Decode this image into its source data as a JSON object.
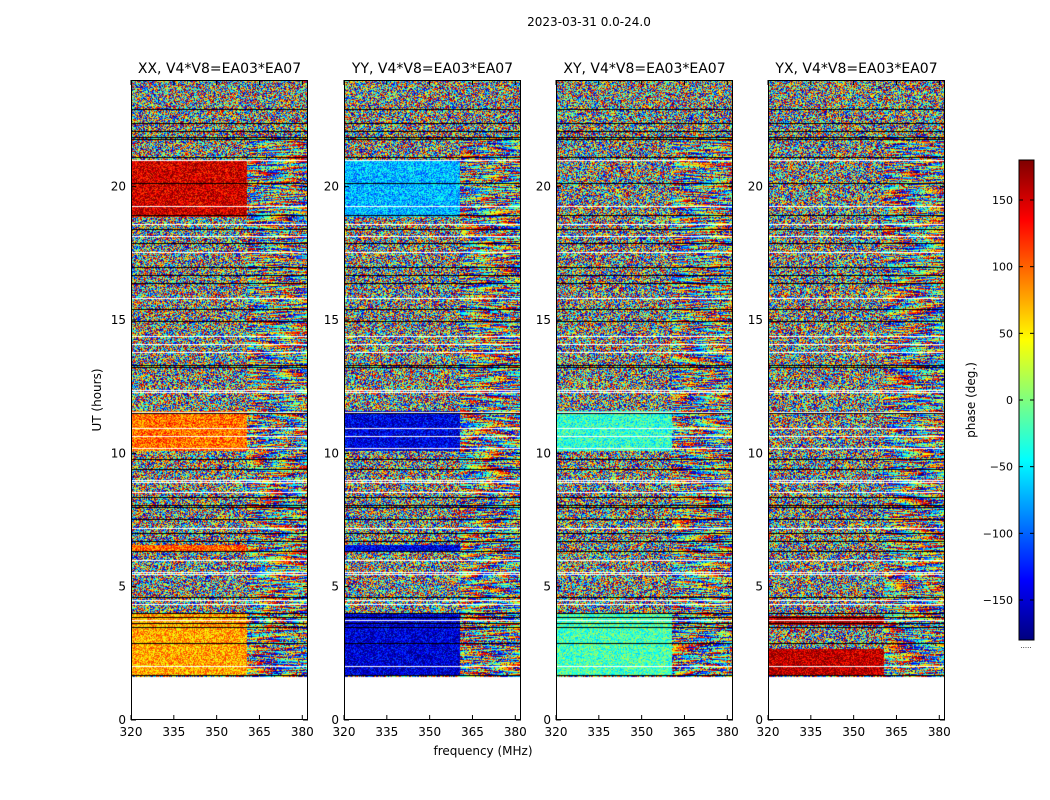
{
  "figure_title": "2023-03-31 0.0-24.0",
  "colorbar": {
    "label": "phase (deg.)",
    "range": [
      -180,
      180
    ],
    "ticks": [
      150,
      100,
      50,
      0,
      -50,
      -100,
      -150
    ],
    "tick_labels": [
      "150",
      "100",
      "50",
      "0",
      "−50",
      "−100",
      "−150"
    ],
    "colormap": "jet",
    "jet_stops": [
      "#00007f",
      "#0000ff",
      "#007fff",
      "#00ffff",
      "#7fff7f",
      "#ffff00",
      "#ff7f00",
      "#ff0000",
      "#7f0000"
    ],
    "footnote": "....."
  },
  "chart_data": {
    "type": "heatmap",
    "xlabel": "frequency (MHz)",
    "ylabel": "UT (hours)",
    "xlim": [
      320,
      382
    ],
    "ylim": [
      0,
      24
    ],
    "xticks": [
      320,
      335,
      350,
      365,
      380
    ],
    "yticks": [
      0,
      5,
      10,
      15,
      20
    ],
    "data_start_hour": 1.6,
    "noise_top_start_hour": 21.9,
    "coherent_channel_limit_mhz": 360.5,
    "value_description": "visibility phase in degrees, per frequency channel and UT time",
    "flagged_rows_hours": [
      1.7,
      2.9,
      3.5,
      3.65,
      3.85,
      4.0,
      4.35,
      4.5,
      5.55,
      6.0,
      6.7,
      7.0,
      7.55,
      8.0,
      8.35,
      8.55,
      9.0,
      9.4,
      10.2,
      10.95,
      11.55,
      12.3,
      13.3,
      13.8,
      14.4,
      15.4,
      16.4,
      17.0,
      17.9,
      18.15,
      18.6,
      18.95,
      21.1,
      21.8,
      22.1,
      22.4,
      22.9
    ],
    "panels": [
      {
        "title": "XX, V4*V8=EA03*EA07",
        "polarization": "XX",
        "coherent_bands": [
          {
            "t0": 1.7,
            "t1": 4.0,
            "phase_deg": 75
          },
          {
            "t0": 6.3,
            "t1": 6.6,
            "phase_deg": 100
          },
          {
            "t0": 10.1,
            "t1": 11.6,
            "phase_deg": 95
          },
          {
            "t0": 18.9,
            "t1": 21.0,
            "phase_deg": 150
          }
        ]
      },
      {
        "title": "YY, V4*V8=EA03*EA07",
        "polarization": "YY",
        "coherent_bands": [
          {
            "t0": 1.7,
            "t1": 4.0,
            "phase_deg": -150
          },
          {
            "t0": 6.3,
            "t1": 6.6,
            "phase_deg": -145
          },
          {
            "t0": 10.1,
            "t1": 11.6,
            "phase_deg": -145
          },
          {
            "t0": 18.9,
            "t1": 21.0,
            "phase_deg": -70
          }
        ]
      },
      {
        "title": "XY, V4*V8=EA03*EA07",
        "polarization": "XY",
        "coherent_bands": [
          {
            "t0": 1.7,
            "t1": 4.0,
            "phase_deg": -20
          },
          {
            "t0": 10.1,
            "t1": 11.6,
            "phase_deg": -30
          }
        ]
      },
      {
        "title": "YX, V4*V8=EA03*EA07",
        "polarization": "YX",
        "coherent_bands": [
          {
            "t0": 1.7,
            "t1": 2.7,
            "phase_deg": 160
          },
          {
            "t0": 3.6,
            "t1": 3.9,
            "phase_deg": 160
          }
        ]
      }
    ]
  }
}
